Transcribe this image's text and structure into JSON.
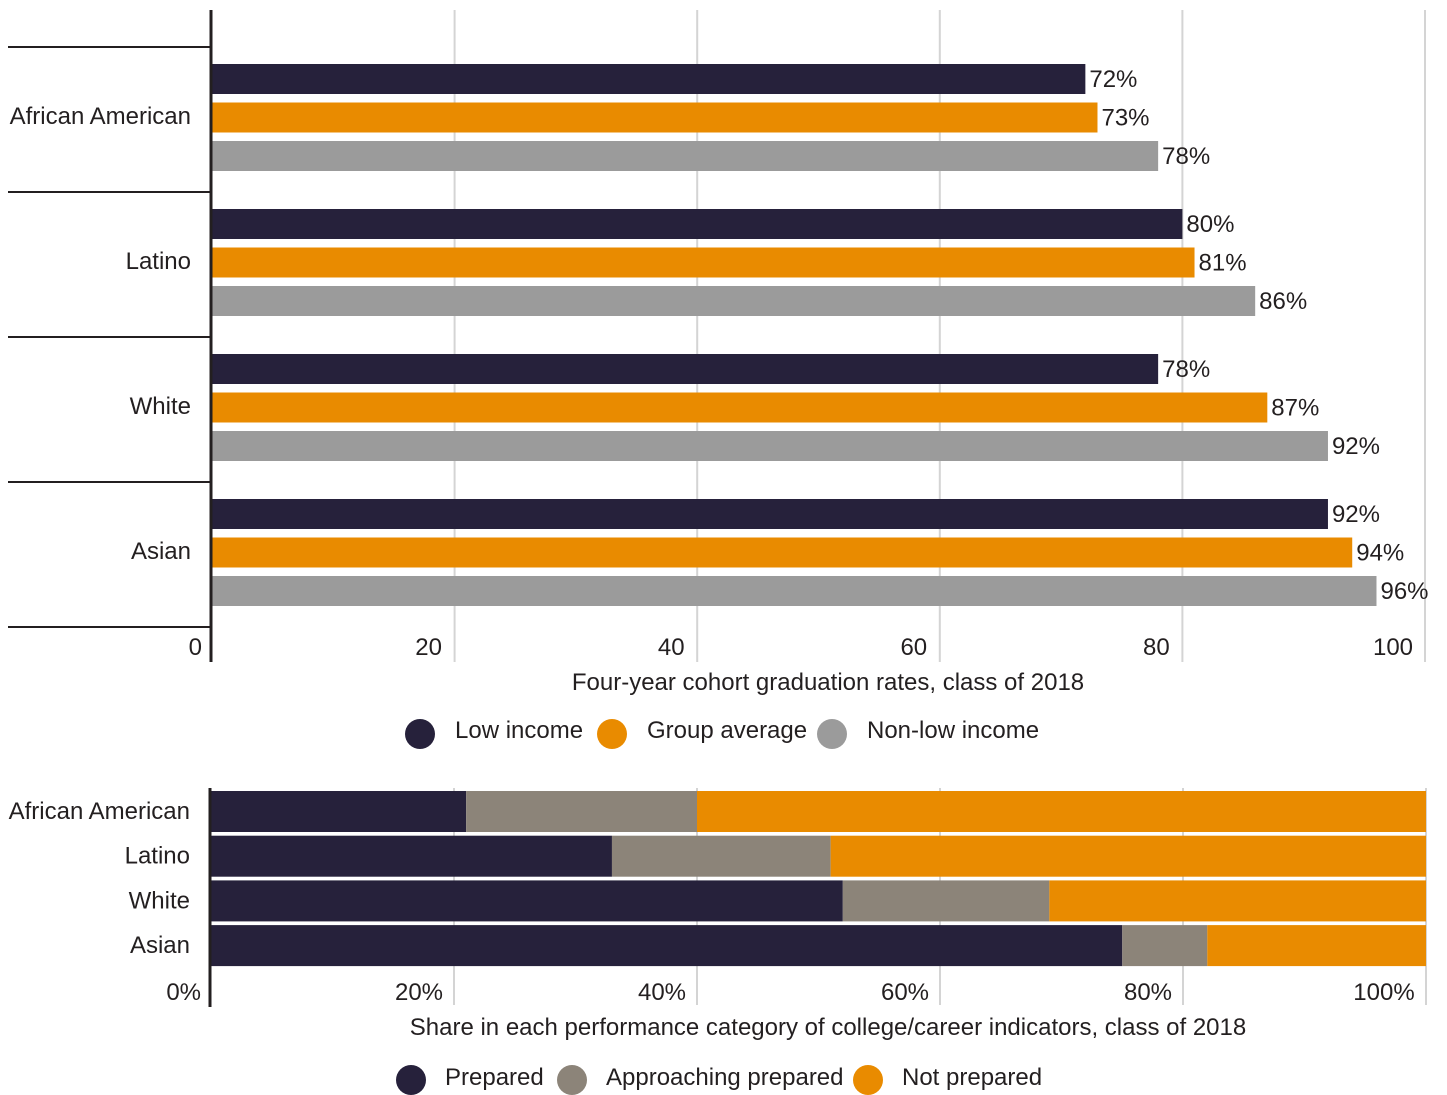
{
  "colors": {
    "low_income": "#26213b",
    "group_average": "#e98b00",
    "non_low_income": "#9b9b9b",
    "prepared": "#26213b",
    "approaching_prepared": "#8c8479",
    "not_prepared": "#e98b00",
    "gridline": "#d4d4d4",
    "axis": "#231f20"
  },
  "chart_data": [
    {
      "type": "bar",
      "orientation": "horizontal",
      "categories": [
        "African American",
        "Latino",
        "White",
        "Asian"
      ],
      "series": [
        {
          "name": "Low income",
          "color_key": "low_income",
          "values": [
            72,
            80,
            78,
            92
          ],
          "labels": [
            "72%",
            "80%",
            "78%",
            "92%"
          ]
        },
        {
          "name": "Group average",
          "color_key": "group_average",
          "values": [
            73,
            81,
            87,
            94
          ],
          "labels": [
            "73%",
            "81%",
            "87%",
            "94%"
          ]
        },
        {
          "name": "Non-low income",
          "color_key": "non_low_income",
          "values": [
            78,
            86,
            92,
            96
          ],
          "labels": [
            "78%",
            "86%",
            "92%",
            "96%"
          ]
        }
      ],
      "xlim": [
        0,
        100
      ],
      "xticks": [
        0,
        20,
        40,
        60,
        80,
        100
      ],
      "xtick_labels": [
        "0",
        "20",
        "40",
        "60",
        "80",
        "100"
      ],
      "xlabel": "Four-year cohort graduation rates, class of 2018",
      "grid": true,
      "legend_position": "bottom"
    },
    {
      "type": "bar",
      "orientation": "horizontal",
      "stacked": true,
      "categories": [
        "African American",
        "Latino",
        "White",
        "Asian"
      ],
      "series": [
        {
          "name": "Prepared",
          "color_key": "prepared",
          "values": [
            21,
            33,
            52,
            75
          ]
        },
        {
          "name": "Approaching prepared",
          "color_key": "approaching_prepared",
          "values": [
            19,
            18,
            17,
            7
          ]
        },
        {
          "name": "Not prepared",
          "color_key": "not_prepared",
          "values": [
            60,
            49,
            31,
            18
          ]
        }
      ],
      "xlim": [
        0,
        100
      ],
      "xticks": [
        0,
        20,
        40,
        60,
        80,
        100
      ],
      "xtick_labels": [
        "0%",
        "20%",
        "40%",
        "60%",
        "80%",
        "100%"
      ],
      "xlabel": "Share in each performance category of college/career indicators, class of 2018",
      "grid": true,
      "legend_position": "bottom"
    }
  ]
}
